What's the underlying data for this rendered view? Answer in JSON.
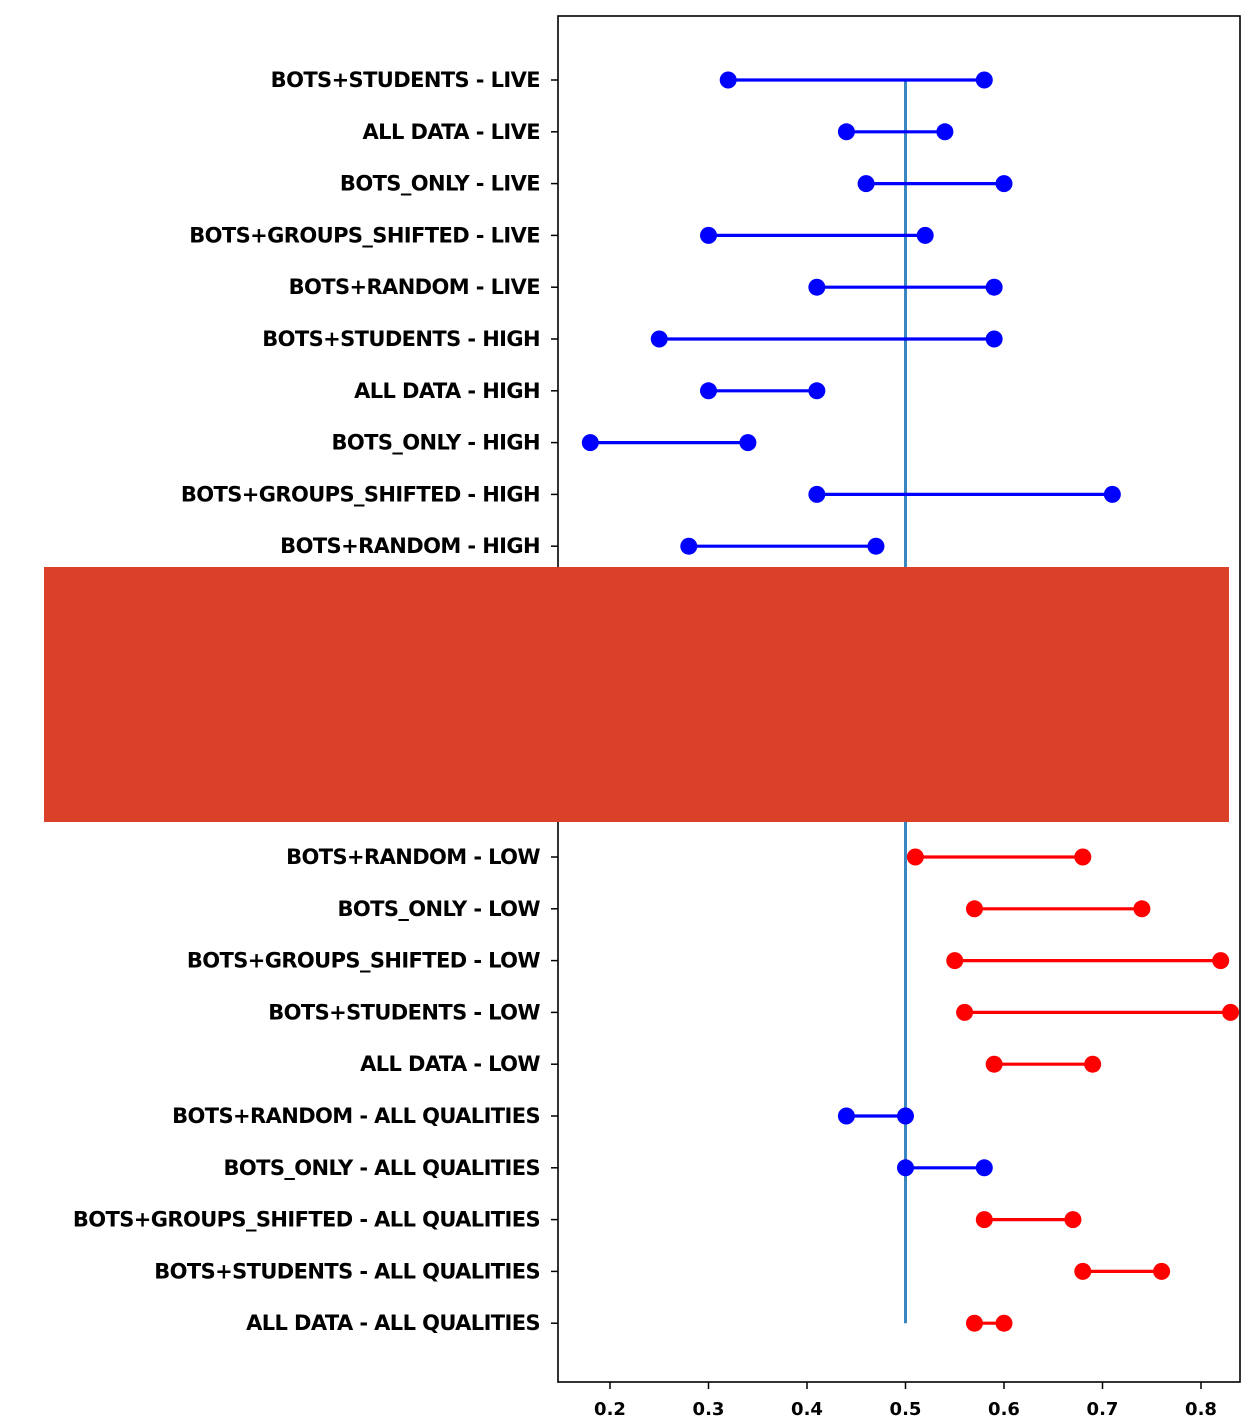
{
  "chart_data": {
    "type": "dumbbell",
    "title": "",
    "xlabel": "",
    "ylabel": "",
    "xlim": [
      0.15,
      0.84
    ],
    "xticks": [
      "0.2",
      "0.3",
      "0.4",
      "0.5",
      "0.6",
      "0.7",
      "0.8"
    ],
    "reference_line_x": 0.5,
    "grid": false,
    "legend": "none",
    "colors": {
      "blue": "#0000ff",
      "red": "#ff0000",
      "reference_line": "#3a86c1",
      "occlusion": "#db4129"
    },
    "occluded_band": {
      "after_category": "BOTS+RANDOM - HIGH",
      "before_category": "BOTS+RANDOM - LOW"
    },
    "categories": [
      {
        "label": "BOTS+STUDENTS - LIVE",
        "low": 0.32,
        "high": 0.58,
        "color": "blue"
      },
      {
        "label": "ALL DATA - LIVE",
        "low": 0.44,
        "high": 0.54,
        "color": "blue"
      },
      {
        "label": "BOTS_ONLY - LIVE",
        "low": 0.46,
        "high": 0.6,
        "color": "blue"
      },
      {
        "label": "BOTS+GROUPS_SHIFTED - LIVE",
        "low": 0.3,
        "high": 0.52,
        "color": "blue"
      },
      {
        "label": "BOTS+RANDOM - LIVE",
        "low": 0.41,
        "high": 0.59,
        "color": "blue"
      },
      {
        "label": "BOTS+STUDENTS - HIGH",
        "low": 0.25,
        "high": 0.59,
        "color": "blue"
      },
      {
        "label": "ALL DATA - HIGH",
        "low": 0.3,
        "high": 0.41,
        "color": "blue"
      },
      {
        "label": "BOTS_ONLY - HIGH",
        "low": 0.18,
        "high": 0.34,
        "color": "blue"
      },
      {
        "label": "BOTS+GROUPS_SHIFTED - HIGH",
        "low": 0.41,
        "high": 0.71,
        "color": "blue"
      },
      {
        "label": "BOTS+RANDOM - HIGH",
        "low": 0.28,
        "high": 0.47,
        "color": "blue"
      },
      {
        "label": "BOTS+RANDOM - LOW",
        "low": 0.51,
        "high": 0.68,
        "color": "red"
      },
      {
        "label": "BOTS_ONLY - LOW",
        "low": 0.57,
        "high": 0.74,
        "color": "red"
      },
      {
        "label": "BOTS+GROUPS_SHIFTED - LOW",
        "low": 0.55,
        "high": 0.82,
        "color": "red"
      },
      {
        "label": "BOTS+STUDENTS - LOW",
        "low": 0.56,
        "high": 0.83,
        "color": "red"
      },
      {
        "label": "ALL DATA - LOW",
        "low": 0.59,
        "high": 0.69,
        "color": "red"
      },
      {
        "label": "BOTS+RANDOM - ALL QUALITIES",
        "low": 0.44,
        "high": 0.5,
        "color": "blue"
      },
      {
        "label": "BOTS_ONLY - ALL QUALITIES",
        "low": 0.5,
        "high": 0.58,
        "color": "blue"
      },
      {
        "label": "BOTS+GROUPS_SHIFTED - ALL QUALITIES",
        "low": 0.58,
        "high": 0.67,
        "color": "red"
      },
      {
        "label": "BOTS+STUDENTS - ALL QUALITIES",
        "low": 0.68,
        "high": 0.76,
        "color": "red"
      },
      {
        "label": "ALL DATA - ALL QUALITIES",
        "low": 0.57,
        "high": 0.6,
        "color": "red"
      }
    ]
  }
}
